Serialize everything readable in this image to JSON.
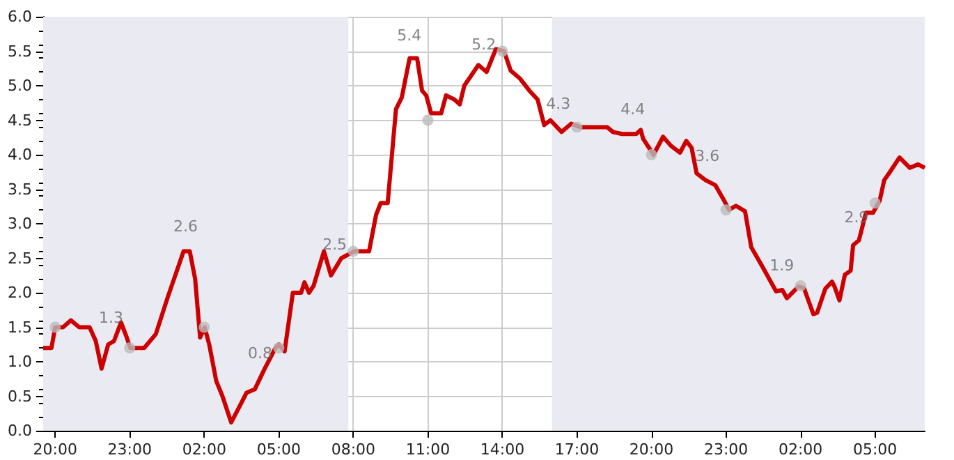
{
  "chart_data": {
    "type": "line",
    "xlim": [
      "--01-01T19:31",
      "--01-03T07:00"
    ],
    "ylim": [
      0,
      6
    ],
    "xticks": [
      {
        "value": "--01-01T20:00",
        "label": "20:00"
      },
      {
        "value": "--01-01T23:00",
        "label": "23:00"
      },
      {
        "value": "--01-02T02:00",
        "label": "02:00"
      },
      {
        "value": "--01-02T05:00",
        "label": "05:00"
      },
      {
        "value": "--01-02T08:00",
        "label": "08:00"
      },
      {
        "value": "--01-02T11:00",
        "label": "11:00"
      },
      {
        "value": "--01-02T14:00",
        "label": "14:00"
      },
      {
        "value": "--01-02T17:00",
        "label": "17:00"
      },
      {
        "value": "--01-02T20:00",
        "label": "20:00"
      },
      {
        "value": "--01-02T23:00",
        "label": "23:00"
      },
      {
        "value": "--01-03T02:00",
        "label": "02:00"
      },
      {
        "value": "--01-03T05:00",
        "label": "05:00"
      }
    ],
    "yticks": [
      {
        "value": 0,
        "label": "0.0"
      },
      {
        "value": 0.5,
        "label": "0.5"
      },
      {
        "value": 1,
        "label": "1.0"
      },
      {
        "value": 1.5,
        "label": "1.5"
      },
      {
        "value": 2,
        "label": "2.0"
      },
      {
        "value": 2.5,
        "label": "2.5"
      },
      {
        "value": 3,
        "label": "3.0"
      },
      {
        "value": 3.5,
        "label": "3.5"
      },
      {
        "value": 4,
        "label": "4.0"
      },
      {
        "value": 4.5,
        "label": "4.5"
      },
      {
        "value": 5,
        "label": "5.0"
      },
      {
        "value": 5.5,
        "label": "5.5"
      },
      {
        "value": 6,
        "label": "6.0"
      }
    ],
    "grid": true,
    "series": [
      {
        "type": "line",
        "color": "#cc0000",
        "marker": "none",
        "x": [
          "--01-01T19:31",
          "--01-01T19:51",
          "--01-01T20:00",
          "--01-01T20:19",
          "--01-01T20:38",
          "--01-01T20:58",
          "--01-01T21:23",
          "--01-01T21:38",
          "--01-01T21:52",
          "--01-01T22:08",
          "--01-01T22:22",
          "--01-01T22:39",
          "--01-01T22:53",
          "--01-01T23:01",
          "--01-01T23:35",
          "--01-02T00:03",
          "--01-02T00:31",
          "--01-02T01:10",
          "--01-02T01:25",
          "--01-02T01:38",
          "--01-02T01:50",
          "--01-02T02:01",
          "--01-02T02:12",
          "--01-02T02:29",
          "--01-02T02:44",
          "--01-02T03:05",
          "--01-02T03:25",
          "--01-02T03:42",
          "--01-02T04:02",
          "--01-02T04:26",
          "--01-02T04:52",
          "--01-02T05:00",
          "--01-02T05:14",
          "--01-02T05:34",
          "--01-02T05:54",
          "--01-02T06:02",
          "--01-02T06:13",
          "--01-02T06:24",
          "--01-02T06:49",
          "--01-02T07:06",
          "--01-02T07:31",
          "--01-02T08:02",
          "--01-02T08:38",
          "--01-02T08:55",
          "--01-02T09:06",
          "--01-02T09:23",
          "--01-02T09:43",
          "--01-02T09:57",
          "--01-02T10:16",
          "--01-02T10:34",
          "--01-02T10:46",
          "--01-02T10:56",
          "--01-02T11:08",
          "--01-02T11:32",
          "--01-02T11:44",
          "--01-02T12:04",
          "--01-02T12:17",
          "--01-02T12:28",
          "--01-02T13:02",
          "--01-02T13:22",
          "--01-02T13:44",
          "--01-02T14:04",
          "--01-02T14:20",
          "--01-02T14:43",
          "--01-02T15:05",
          "--01-02T15:25",
          "--01-02T15:41",
          "--01-02T15:56",
          "--01-02T16:23",
          "--01-02T16:46",
          "--01-02T17:08",
          "--01-02T18:13",
          "--01-02T18:27",
          "--01-02T18:49",
          "--01-02T19:23",
          "--01-02T19:34",
          "--01-02T19:40",
          "--01-02T20:05",
          "--01-02T20:28",
          "--01-02T20:47",
          "--01-02T21:09",
          "--01-02T21:24",
          "--01-02T21:37",
          "--01-02T21:49",
          "--01-02T22:11",
          "--01-02T22:34",
          "--01-02T22:56",
          "--01-02T23:07",
          "--01-02T23:24",
          "--01-02T23:46",
          "--01-03T00:01",
          "--01-03T00:26",
          "--01-03T01:01",
          "--01-03T01:16",
          "--01-03T01:27",
          "--01-03T01:55",
          "--01-03T02:08",
          "--01-03T02:31",
          "--01-03T02:40",
          "--01-03T03:00",
          "--01-03T03:16",
          "--01-03T03:22",
          "--01-03T03:34",
          "--01-03T03:47",
          "--01-03T04:01",
          "--01-03T04:07",
          "--01-03T04:21",
          "--01-03T04:38",
          "--01-03T04:55",
          "--01-03T05:11",
          "--01-03T05:22",
          "--01-03T05:37",
          "--01-03T05:59",
          "--01-03T06:24",
          "--01-03T06:44",
          "--01-03T07:00"
        ],
        "values": [
          1.2,
          1.2,
          1.5,
          1.5,
          1.6,
          1.5,
          1.5,
          1.3,
          0.9,
          1.25,
          1.3,
          1.57,
          1.35,
          1.2,
          1.2,
          1.4,
          1.92,
          2.6,
          2.6,
          2.2,
          1.35,
          1.5,
          1.25,
          0.72,
          0.5,
          0.12,
          0.35,
          0.55,
          0.6,
          0.9,
          1.2,
          1.25,
          1.15,
          2.0,
          2.0,
          2.15,
          2.0,
          2.1,
          2.6,
          2.25,
          2.5,
          2.6,
          2.6,
          3.13,
          3.3,
          3.3,
          4.66,
          4.83,
          5.4,
          5.4,
          4.93,
          4.86,
          4.6,
          4.6,
          4.86,
          4.8,
          4.73,
          5.0,
          5.3,
          5.2,
          5.53,
          5.5,
          5.22,
          5.1,
          4.93,
          4.8,
          4.43,
          4.5,
          4.33,
          4.45,
          4.4,
          4.4,
          4.33,
          4.3,
          4.3,
          4.36,
          4.23,
          4.0,
          4.26,
          4.13,
          4.03,
          4.2,
          4.1,
          3.73,
          3.63,
          3.56,
          3.33,
          3.2,
          3.26,
          3.18,
          2.66,
          2.4,
          2.02,
          2.04,
          1.92,
          2.09,
          2.07,
          1.69,
          1.71,
          2.06,
          2.16,
          2.09,
          1.89,
          2.26,
          2.32,
          2.69,
          2.76,
          3.16,
          3.16,
          3.33,
          3.63,
          3.76,
          3.96,
          3.81,
          3.86,
          3.81
        ]
      },
      {
        "type": "scatter",
        "color": "#bbbbbb",
        "marker": "circle",
        "x": [
          "--01-01T20:00",
          "--01-01T23:00",
          "--01-02T02:00",
          "--01-02T05:00",
          "--01-02T08:00",
          "--01-02T11:00",
          "--01-02T14:00",
          "--01-02T17:00",
          "--01-02T20:00",
          "--01-02T23:00",
          "--01-03T02:00",
          "--01-03T05:00"
        ],
        "values": [
          1.5,
          1.2,
          1.5,
          1.2,
          2.6,
          4.5,
          5.5,
          4.4,
          4.0,
          3.2,
          2.1,
          3.3
        ]
      }
    ],
    "bands": [
      {
        "axis": "x",
        "from": "--01-01T19:31",
        "to": "--01-02T07:48",
        "color": "#eaeaf2"
      },
      {
        "axis": "x",
        "from": "--01-02T16:00",
        "to": "--01-03T07:00",
        "color": "#eaeaf2"
      }
    ],
    "annotations": [
      "1.3",
      "2.6",
      "0.8",
      "2.5",
      "5.4",
      "5.2",
      "4.3",
      "4.4",
      "3.6",
      "1.9",
      "2.9"
    ]
  }
}
